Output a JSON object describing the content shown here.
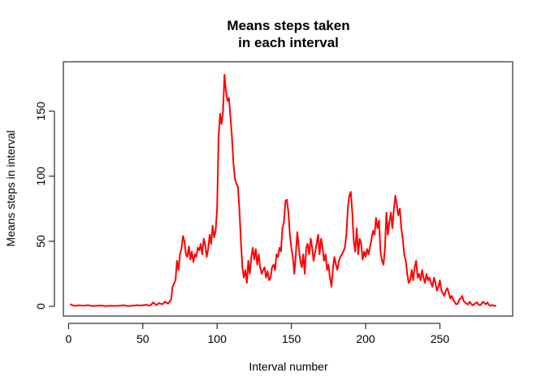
{
  "chart_data": {
    "type": "line",
    "title_lines": [
      "Means steps taken",
      "in each interval"
    ],
    "xlabel": "Interval number",
    "ylabel": "Means steps in interval",
    "x_ticks": [
      0,
      50,
      100,
      150,
      200,
      250
    ],
    "y_ticks": [
      0,
      50,
      100,
      150
    ],
    "xlim": [
      -3.5,
      299
    ],
    "ylim": [
      -7.5,
      188
    ],
    "grid": false,
    "legend": "none",
    "line_color": "#ff0000",
    "series": [
      {
        "points": [
          [
            1,
            1.7
          ],
          [
            4,
            0.3
          ],
          [
            7,
            0.8
          ],
          [
            10,
            0.5
          ],
          [
            13,
            0.9
          ],
          [
            16,
            0.2
          ],
          [
            19,
            0.5
          ],
          [
            22,
            0.6
          ],
          [
            25,
            0.2
          ],
          [
            28,
            0.5
          ],
          [
            31,
            0.3
          ],
          [
            34,
            0.5
          ],
          [
            37,
            0.8
          ],
          [
            40,
            0.2
          ],
          [
            43,
            0.5
          ],
          [
            46,
            0.9
          ],
          [
            49,
            0.6
          ],
          [
            52,
            1.2
          ],
          [
            55,
            0.5
          ],
          [
            57,
            3.0
          ],
          [
            59,
            1.0
          ],
          [
            61,
            2.5
          ],
          [
            63,
            1.5
          ],
          [
            65,
            3.5
          ],
          [
            67,
            2.0
          ],
          [
            69,
            5
          ],
          [
            70,
            15
          ],
          [
            72,
            20
          ],
          [
            73,
            35
          ],
          [
            74,
            28
          ],
          [
            75,
            40
          ],
          [
            76,
            44
          ],
          [
            77,
            54
          ],
          [
            78,
            50
          ],
          [
            79,
            40
          ],
          [
            80,
            38
          ],
          [
            81,
            46
          ],
          [
            82,
            36
          ],
          [
            83,
            42
          ],
          [
            84,
            34
          ],
          [
            85,
            40
          ],
          [
            86,
            38
          ],
          [
            87,
            45
          ],
          [
            88,
            43
          ],
          [
            89,
            48
          ],
          [
            90,
            40
          ],
          [
            91,
            52
          ],
          [
            92,
            47
          ],
          [
            93,
            38
          ],
          [
            94,
            44
          ],
          [
            95,
            55
          ],
          [
            96,
            48
          ],
          [
            97,
            62
          ],
          [
            98,
            53
          ],
          [
            99,
            58
          ],
          [
            100,
            75
          ],
          [
            101,
            130
          ],
          [
            102,
            148
          ],
          [
            103,
            140
          ],
          [
            104,
            150
          ],
          [
            105,
            178
          ],
          [
            106,
            165
          ],
          [
            107,
            158
          ],
          [
            108,
            160
          ],
          [
            109,
            145
          ],
          [
            110,
            130
          ],
          [
            111,
            110
          ],
          [
            112,
            98
          ],
          [
            113,
            94
          ],
          [
            114,
            92
          ],
          [
            115,
            75
          ],
          [
            116,
            50
          ],
          [
            117,
            30
          ],
          [
            118,
            22
          ],
          [
            119,
            28
          ],
          [
            120,
            18
          ],
          [
            121,
            35
          ],
          [
            122,
            25
          ],
          [
            123,
            38
          ],
          [
            124,
            45
          ],
          [
            125,
            36
          ],
          [
            126,
            44
          ],
          [
            127,
            32
          ],
          [
            128,
            40
          ],
          [
            129,
            30
          ],
          [
            130,
            25
          ],
          [
            131,
            28
          ],
          [
            132,
            30
          ],
          [
            133,
            22
          ],
          [
            134,
            27
          ],
          [
            135,
            20
          ],
          [
            136,
            22
          ],
          [
            137,
            30
          ],
          [
            138,
            32
          ],
          [
            139,
            28
          ],
          [
            140,
            40
          ],
          [
            141,
            38
          ],
          [
            142,
            45
          ],
          [
            143,
            42
          ],
          [
            144,
            60
          ],
          [
            145,
            65
          ],
          [
            146,
            81
          ],
          [
            147,
            82
          ],
          [
            148,
            72
          ],
          [
            149,
            55
          ],
          [
            150,
            45
          ],
          [
            151,
            38
          ],
          [
            152,
            25
          ],
          [
            153,
            40
          ],
          [
            154,
            57
          ],
          [
            155,
            45
          ],
          [
            156,
            35
          ],
          [
            157,
            30
          ],
          [
            158,
            40
          ],
          [
            159,
            25
          ],
          [
            160,
            45
          ],
          [
            161,
            48
          ],
          [
            162,
            40
          ],
          [
            163,
            52
          ],
          [
            164,
            45
          ],
          [
            165,
            35
          ],
          [
            166,
            42
          ],
          [
            167,
            48
          ],
          [
            168,
            55
          ],
          [
            169,
            40
          ],
          [
            170,
            52
          ],
          [
            171,
            45
          ],
          [
            172,
            35
          ],
          [
            173,
            40
          ],
          [
            174,
            28
          ],
          [
            175,
            32
          ],
          [
            176,
            22
          ],
          [
            177,
            15
          ],
          [
            178,
            30
          ],
          [
            179,
            38
          ],
          [
            180,
            32
          ],
          [
            181,
            28
          ],
          [
            182,
            35
          ],
          [
            183,
            38
          ],
          [
            184,
            40
          ],
          [
            185,
            42
          ],
          [
            186,
            45
          ],
          [
            187,
            55
          ],
          [
            188,
            75
          ],
          [
            189,
            85
          ],
          [
            190,
            88
          ],
          [
            191,
            72
          ],
          [
            192,
            50
          ],
          [
            193,
            42
          ],
          [
            194,
            60
          ],
          [
            195,
            40
          ],
          [
            196,
            52
          ],
          [
            197,
            48
          ],
          [
            198,
            36
          ],
          [
            199,
            42
          ],
          [
            200,
            38
          ],
          [
            201,
            44
          ],
          [
            202,
            40
          ],
          [
            203,
            46
          ],
          [
            204,
            52
          ],
          [
            205,
            58
          ],
          [
            206,
            55
          ],
          [
            207,
            68
          ],
          [
            208,
            60
          ],
          [
            209,
            66
          ],
          [
            210,
            42
          ],
          [
            211,
            35
          ],
          [
            212,
            32
          ],
          [
            213,
            45
          ],
          [
            214,
            72
          ],
          [
            215,
            55
          ],
          [
            216,
            65
          ],
          [
            217,
            72
          ],
          [
            218,
            60
          ],
          [
            219,
            75
          ],
          [
            220,
            85
          ],
          [
            221,
            78
          ],
          [
            222,
            70
          ],
          [
            223,
            75
          ],
          [
            224,
            60
          ],
          [
            225,
            52
          ],
          [
            226,
            40
          ],
          [
            227,
            35
          ],
          [
            228,
            25
          ],
          [
            229,
            18
          ],
          [
            230,
            20
          ],
          [
            231,
            28
          ],
          [
            232,
            20
          ],
          [
            233,
            30
          ],
          [
            234,
            35
          ],
          [
            235,
            22
          ],
          [
            236,
            25
          ],
          [
            237,
            20
          ],
          [
            238,
            28
          ],
          [
            239,
            22
          ],
          [
            240,
            18
          ],
          [
            241,
            25
          ],
          [
            242,
            20
          ],
          [
            243,
            22
          ],
          [
            244,
            18
          ],
          [
            245,
            15
          ],
          [
            246,
            22
          ],
          [
            247,
            18
          ],
          [
            248,
            12
          ],
          [
            249,
            15
          ],
          [
            250,
            20
          ],
          [
            251,
            12
          ],
          [
            252,
            10
          ],
          [
            253,
            8
          ],
          [
            254,
            12
          ],
          [
            255,
            14
          ],
          [
            256,
            10
          ],
          [
            257,
            6
          ],
          [
            258,
            8
          ],
          [
            259,
            5
          ],
          [
            260,
            3
          ],
          [
            261,
            1.5
          ],
          [
            262,
            2
          ],
          [
            263,
            5
          ],
          [
            264,
            6
          ],
          [
            265,
            8
          ],
          [
            266,
            4
          ],
          [
            267,
            3
          ],
          [
            268,
            2
          ],
          [
            269,
            1.5
          ],
          [
            270,
            3.5
          ],
          [
            271,
            2
          ],
          [
            272,
            0.8
          ],
          [
            273,
            1.5
          ],
          [
            274,
            2.5
          ],
          [
            275,
            3
          ],
          [
            276,
            1.2
          ],
          [
            277,
            0.8
          ],
          [
            278,
            1.8
          ],
          [
            279,
            3.5
          ],
          [
            280,
            2.5
          ],
          [
            281,
            1.5
          ],
          [
            282,
            3
          ],
          [
            283,
            1
          ],
          [
            284,
            0.5
          ],
          [
            285,
            1
          ],
          [
            286,
            0.6
          ],
          [
            287,
            0.3
          ],
          [
            288,
            0.5
          ]
        ]
      }
    ]
  }
}
